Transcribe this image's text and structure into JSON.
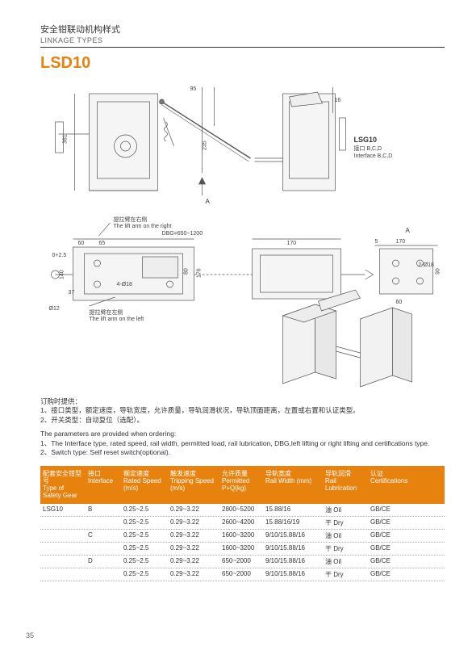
{
  "header": {
    "title_cn": "安全钳联动机构样式",
    "title_en": "LINKAGE TYPES",
    "model": "LSD10"
  },
  "diagram": {
    "label_lsg10": "LSG10",
    "label_interface_cn": "接口 B,C,D",
    "label_interface_en": "Interface B,C,D",
    "lift_arm_right_cn": "提拉臂在右侧",
    "lift_arm_right_en": "The lift arm  on the right",
    "lift_arm_left_cn": "提拉臂在左侧",
    "lift_arm_left_en": "The lift arm  on the left",
    "dbg_range": "DBG=650~1200",
    "section_a": "A",
    "dims": {
      "d381": "381",
      "d95": "95",
      "d235": "235",
      "d16": "16",
      "d60": "60",
      "d65": "65",
      "d170": "170",
      "d5": "5",
      "d140": "140",
      "d37": "37",
      "d176": "176",
      "d80": "80",
      "d4phi18": "4-Ø18",
      "d2phi18": "2-Ø18",
      "dphi12": "Ø12",
      "d25up": "0+2.5",
      "d90": "90",
      "d60b": "60"
    }
  },
  "notes": {
    "cn_intro": "订购时提供：",
    "cn_1": "1、接口类型，额定速度，导轨宽度，允许质量，导轨润滑状况，导轨顶面距离，左置或右置和认证类型。",
    "cn_2": "2、开关类型：自动复位（选配）。",
    "en_intro": "The parameters are provided when ordering:",
    "en_1": "1、The Interface type, rated speed, rail width, permitted load, rail lubrication, DBG,left lifting or right lifting and certifications type.",
    "en_2": "2、Switch type: Self reset switch(optional)."
  },
  "table": {
    "headers": {
      "type": {
        "cn": "配套安全钳型号",
        "en": "Type of Safety Gear"
      },
      "iface": {
        "cn": "接口",
        "en": "Interface"
      },
      "rated": {
        "cn": "额定速度",
        "en": "Rated Speed (m/s)"
      },
      "trip": {
        "cn": "触发速度",
        "en": "Tripping Speed (m/s)"
      },
      "load": {
        "cn": "允许质量",
        "en": "Permitted P+Q(kg)"
      },
      "rail": {
        "cn": "导轨宽度",
        "en": "Rail Width (mm)"
      },
      "lube": {
        "cn": "导轨润滑",
        "en": "Rail Lubrication"
      },
      "cert": {
        "cn": "认证",
        "en": "Certifications"
      }
    },
    "rows": [
      {
        "type": "LSG10",
        "iface": "B",
        "rated": "0.25~2.5",
        "trip": "0.29~3.22",
        "load": "2800~5200",
        "rail": "15.88/16",
        "lube": "油 Oil",
        "cert": "GB/CE"
      },
      {
        "type": "",
        "iface": "",
        "rated": "0.25~2.5",
        "trip": "0.29~3.22",
        "load": "2600~4200",
        "rail": "15.88/16/19",
        "lube": "干 Dry",
        "cert": "GB/CE"
      },
      {
        "type": "",
        "iface": "C",
        "rated": "0.25~2.5",
        "trip": "0.29~3.22",
        "load": "1600~3200",
        "rail": "9/10/15.88/16",
        "lube": "油 Oil",
        "cert": "GB/CE"
      },
      {
        "type": "",
        "iface": "",
        "rated": "0.25~2.5",
        "trip": "0.29~3.22",
        "load": "1600~3200",
        "rail": "9/10/15.88/16",
        "lube": "干 Dry",
        "cert": "GB/CE"
      },
      {
        "type": "",
        "iface": "D",
        "rated": "0.25~2.5",
        "trip": "0.29~3.22",
        "load": "650~2000",
        "rail": "9/10/15.88/16",
        "lube": "油 Oil",
        "cert": "GB/CE"
      },
      {
        "type": "",
        "iface": "",
        "rated": "0.25~2.5",
        "trip": "0.29~3.22",
        "load": "650~2000",
        "rail": "9/10/15.88/16",
        "lube": "干 Dry",
        "cert": "GB/CE"
      }
    ]
  },
  "page_number": "35"
}
